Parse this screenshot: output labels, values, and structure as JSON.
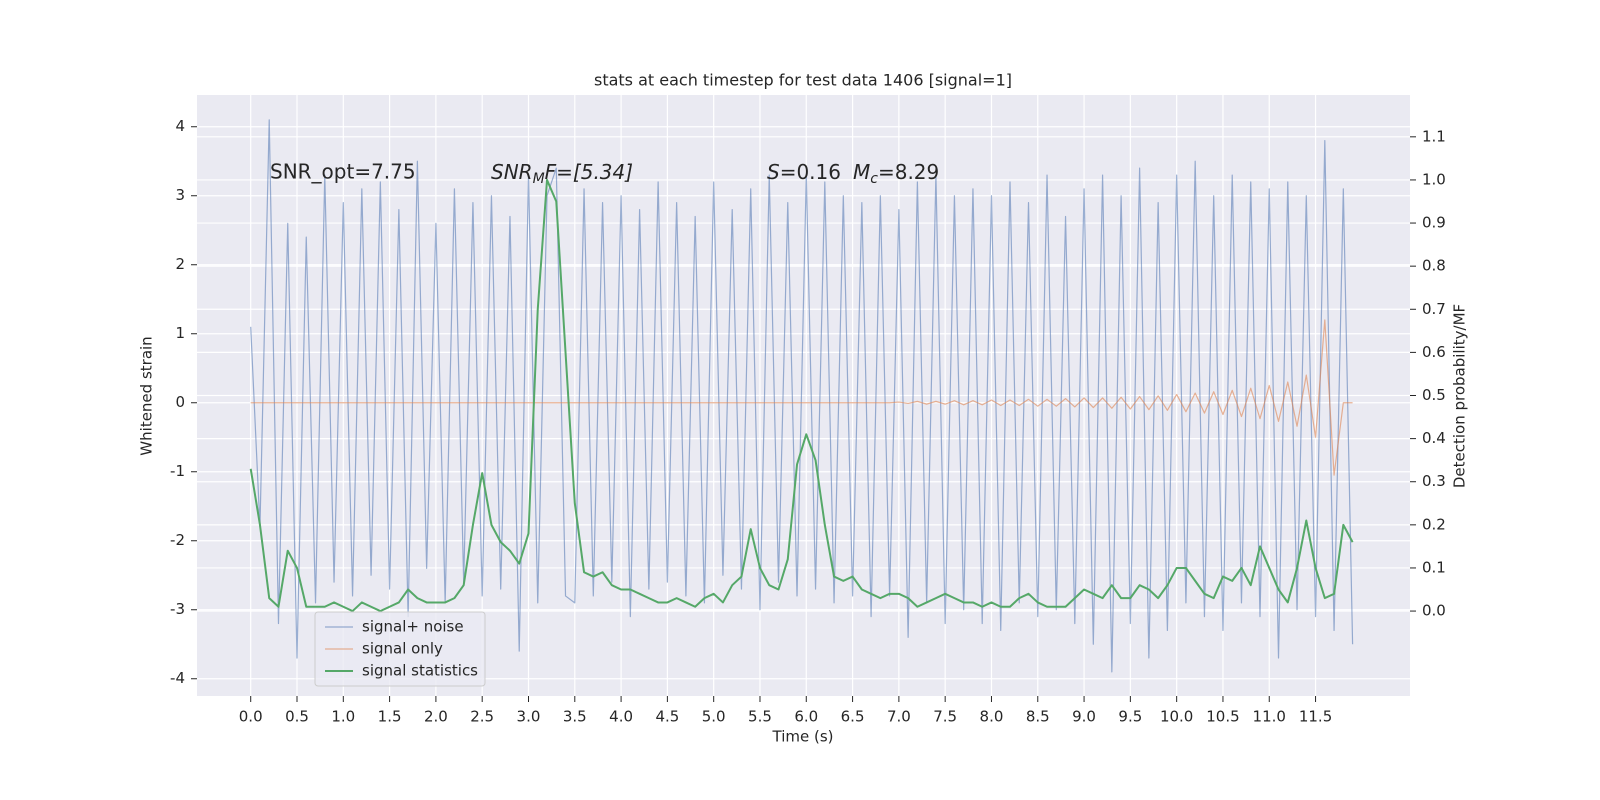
{
  "chart_data": {
    "type": "line",
    "title": "stats at each timestep for test data 1406 [signal=1]",
    "xlabel": "Time (s)",
    "ylabel": "Whitened strain",
    "y2label": "Detection probability/MF",
    "annotations": [
      [
        "SNR_opt=7.75"
      ],
      [
        "SNR",
        "M",
        "F=[5.34]"
      ],
      [
        "S",
        "=0.16",
        "M",
        "c",
        "=8.29"
      ]
    ],
    "grid": true,
    "legend": "lower left",
    "xlim": [
      -0.58,
      12.52
    ],
    "ylim": [
      -4.25,
      4.46
    ],
    "y2lim": [
      -0.197,
      1.197
    ],
    "xticks": [
      {
        "value": 0,
        "label": "0.0"
      },
      0.5,
      {
        "value": 1,
        "label": "1.0"
      },
      1.5,
      {
        "value": 2,
        "label": "2.0"
      },
      2.5,
      {
        "value": 3,
        "label": "3.0"
      },
      3.5,
      {
        "value": 4,
        "label": "4.0"
      },
      4.5,
      {
        "value": 5,
        "label": "5.0"
      },
      5.5,
      {
        "value": 6,
        "label": "6.0"
      },
      6.5,
      {
        "value": 7,
        "label": "7.0"
      },
      7.5,
      {
        "value": 8,
        "label": "8.0"
      },
      8.5,
      {
        "value": 9,
        "label": "9.0"
      },
      9.5,
      {
        "value": 10,
        "label": "10.0"
      },
      10.5,
      {
        "value": 11,
        "label": "11.0"
      },
      11.5
    ],
    "yticks": [
      -4,
      -3,
      -2,
      -1,
      0,
      1,
      2,
      3,
      4
    ],
    "y2ticks": [
      {
        "value": 0,
        "label": "0.0"
      },
      0.1,
      0.2,
      0.3,
      0.4,
      0.5,
      0.6,
      0.7,
      0.8,
      0.9,
      {
        "value": 1,
        "label": "1.0"
      },
      1.1
    ],
    "x": [
      0,
      0.1,
      0.2,
      0.3,
      0.4,
      0.5,
      0.6,
      0.7,
      0.8,
      0.9,
      1,
      1.1,
      1.2,
      1.3,
      1.4,
      1.5,
      1.6,
      1.7,
      1.8,
      1.9,
      2,
      2.1,
      2.2,
      2.3,
      2.4,
      2.5,
      2.6,
      2.7,
      2.8,
      2.9,
      3,
      3.1,
      3.2,
      3.3,
      3.4,
      3.5,
      3.6,
      3.7,
      3.8,
      3.9,
      4,
      4.1,
      4.2,
      4.3,
      4.4,
      4.5,
      4.6,
      4.7,
      4.8,
      4.9,
      5,
      5.1,
      5.2,
      5.3,
      5.4,
      5.5,
      5.6,
      5.7,
      5.8,
      5.9,
      6,
      6.1,
      6.2,
      6.3,
      6.4,
      6.5,
      6.6,
      6.7,
      6.8,
      6.9,
      7,
      7.1,
      7.2,
      7.3,
      7.4,
      7.5,
      7.6,
      7.7,
      7.8,
      7.9,
      8,
      8.1,
      8.2,
      8.3,
      8.4,
      8.5,
      8.6,
      8.7,
      8.8,
      8.9,
      9,
      9.1,
      9.2,
      9.3,
      9.4,
      9.5,
      9.6,
      9.7,
      9.8,
      9.9,
      10,
      10.1,
      10.2,
      10.3,
      10.4,
      10.5,
      10.6,
      10.7,
      10.8,
      10.9,
      11,
      11.1,
      11.2,
      11.3,
      11.4,
      11.5,
      11.6,
      11.7,
      11.8,
      11.9
    ],
    "series": [
      {
        "name": "signal+ noise",
        "color": "#4c72b0",
        "values": [
          1.1,
          -1.8,
          4.1,
          -3.2,
          2.6,
          -3.7,
          2.4,
          -2.9,
          3.3,
          -2.6,
          2.9,
          -2.8,
          3.1,
          -2.5,
          3.2,
          -2.7,
          2.8,
          -3.1,
          3.5,
          -2.4,
          2.6,
          -2.9,
          3.1,
          -2.6,
          2.9,
          -2.8,
          3.0,
          -2.7,
          2.7,
          -3.6,
          3.3,
          -2.9,
          3.0,
          3.4,
          -2.8,
          -2.9,
          3.1,
          -2.8,
          2.9,
          -2.6,
          3.0,
          -3.1,
          2.8,
          -2.7,
          3.2,
          -2.6,
          2.9,
          -2.8,
          2.7,
          -2.9,
          3.2,
          -2.5,
          2.8,
          -2.7,
          3.1,
          -3.0,
          3.3,
          -2.6,
          2.9,
          -2.8,
          3.3,
          -2.7,
          3.2,
          -2.9,
          3.0,
          -2.8,
          2.9,
          -3.1,
          3.0,
          -2.8,
          2.8,
          -3.4,
          3.2,
          -2.9,
          3.3,
          -3.2,
          3.0,
          -3.0,
          3.1,
          -3.2,
          3.0,
          -3.3,
          3.2,
          -2.9,
          2.9,
          -3.1,
          3.3,
          -3.0,
          2.7,
          -3.2,
          3.1,
          -3.5,
          3.3,
          -3.9,
          3.0,
          -3.2,
          3.4,
          -3.7,
          2.9,
          -3.3,
          3.3,
          -2.9,
          3.5,
          -3.1,
          3.0,
          -3.3,
          3.3,
          -2.9,
          3.2,
          -3.1,
          3.1,
          -3.7,
          3.2,
          -3.0,
          3.0,
          -3.1,
          3.8,
          -3.3,
          3.1,
          -3.5
        ]
      },
      {
        "name": "signal only",
        "color": "#dd8452",
        "values": [
          0,
          0,
          0,
          0,
          0,
          0,
          0,
          0,
          0,
          0,
          0,
          0,
          0,
          0,
          0,
          0,
          0,
          0,
          0,
          0,
          0,
          0,
          0,
          0,
          0,
          0,
          0,
          0,
          0,
          0,
          0,
          0,
          0,
          0,
          0,
          0,
          0,
          0,
          0,
          0,
          0,
          0,
          0,
          0,
          0,
          0,
          0,
          0,
          0,
          0,
          0,
          0,
          0,
          0,
          0,
          0,
          0,
          0,
          0,
          0,
          0,
          0,
          0,
          0,
          0,
          0,
          0,
          0,
          0,
          0,
          0.01,
          -0.01,
          0.02,
          -0.02,
          0.02,
          -0.02,
          0.03,
          -0.03,
          0.03,
          -0.03,
          0.04,
          -0.04,
          0.04,
          -0.04,
          0.05,
          -0.05,
          0.05,
          -0.05,
          0.06,
          -0.06,
          0.07,
          -0.07,
          0.07,
          -0.08,
          0.08,
          -0.09,
          0.09,
          -0.1,
          0.1,
          -0.11,
          0.12,
          -0.13,
          0.14,
          -0.15,
          0.16,
          -0.17,
          0.18,
          -0.2,
          0.21,
          -0.23,
          0.25,
          -0.27,
          0.3,
          -0.34,
          0.4,
          -0.5,
          1.2,
          -1.05,
          0,
          0
        ]
      },
      {
        "name": "signal statistics",
        "color": "#55a868",
        "axis": "y2",
        "values": [
          0.33,
          0.2,
          0.03,
          0.01,
          0.14,
          0.1,
          0.01,
          0.01,
          0.01,
          0.02,
          0.01,
          0,
          0.02,
          0.01,
          0,
          0.01,
          0.02,
          0.05,
          0.03,
          0.02,
          0.02,
          0.02,
          0.03,
          0.06,
          0.2,
          0.32,
          0.2,
          0.16,
          0.14,
          0.11,
          0.18,
          0.7,
          1.0,
          0.95,
          0.6,
          0.25,
          0.09,
          0.08,
          0.09,
          0.06,
          0.05,
          0.05,
          0.04,
          0.03,
          0.02,
          0.02,
          0.03,
          0.02,
          0.01,
          0.03,
          0.04,
          0.02,
          0.06,
          0.08,
          0.19,
          0.1,
          0.06,
          0.05,
          0.12,
          0.34,
          0.41,
          0.35,
          0.2,
          0.08,
          0.07,
          0.08,
          0.05,
          0.04,
          0.03,
          0.04,
          0.04,
          0.03,
          0.01,
          0.02,
          0.03,
          0.04,
          0.03,
          0.02,
          0.02,
          0.01,
          0.02,
          0.01,
          0.01,
          0.03,
          0.04,
          0.02,
          0.01,
          0.01,
          0.01,
          0.03,
          0.05,
          0.04,
          0.03,
          0.06,
          0.03,
          0.03,
          0.06,
          0.05,
          0.03,
          0.06,
          0.1,
          0.1,
          0.07,
          0.04,
          0.03,
          0.08,
          0.07,
          0.1,
          0.06,
          0.15,
          0.1,
          0.05,
          0.02,
          0.1,
          0.21,
          0.1,
          0.03,
          0.04,
          0.2,
          0.16
        ]
      }
    ]
  }
}
